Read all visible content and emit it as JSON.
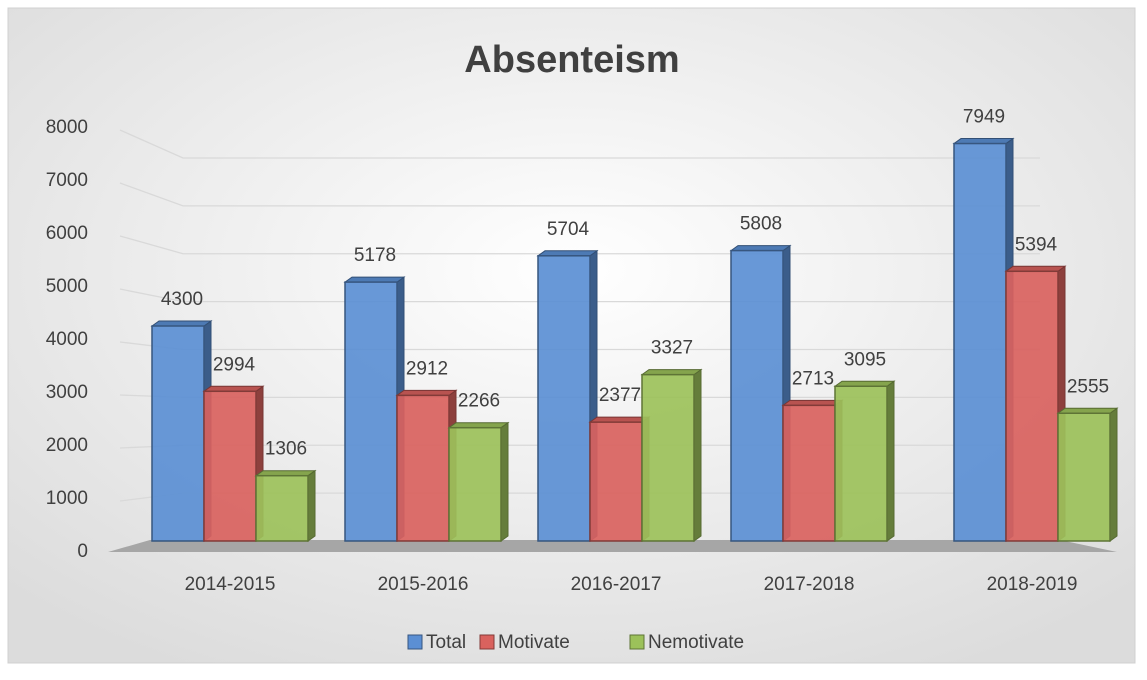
{
  "chart_data": {
    "type": "bar",
    "title": "Absenteism",
    "categories": [
      "2014-2015",
      "2015-2016",
      "2016-2017",
      "2017-2018",
      "2018-2019"
    ],
    "series": [
      {
        "name": "Total",
        "color": "#5b8fd4",
        "values": [
          4300,
          5178,
          5704,
          5808,
          7949
        ]
      },
      {
        "name": "Motivate",
        "color": "#d9625e",
        "values": [
          2994,
          2912,
          2377,
          2713,
          5394
        ]
      },
      {
        "name": "Nemotivate",
        "color": "#9cc15a",
        "values": [
          1306,
          2266,
          3327,
          3095,
          2555
        ]
      }
    ],
    "ylim": [
      0,
      8000
    ],
    "yticks": [
      0,
      1000,
      2000,
      3000,
      4000,
      5000,
      6000,
      7000,
      8000
    ],
    "grid": true,
    "legend": "bottom"
  }
}
